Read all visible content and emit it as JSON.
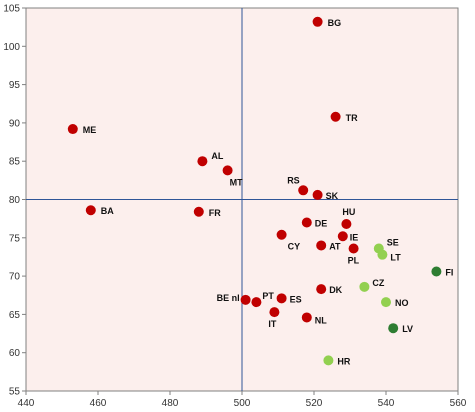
{
  "chart_data": {
    "type": "scatter",
    "title": "",
    "xlabel": "",
    "ylabel": "",
    "xlim": [
      440,
      560
    ],
    "ylim": [
      55,
      105
    ],
    "xticks": [
      440,
      460,
      480,
      500,
      520,
      540,
      560
    ],
    "yticks": [
      55,
      60,
      65,
      70,
      75,
      80,
      85,
      90,
      95,
      100,
      105
    ],
    "grid": false,
    "reference_lines": {
      "x": 500,
      "y": 80
    },
    "colors": {
      "plot_background": "#fcefed",
      "reference_line": "#2f5597",
      "red": "#c00000",
      "light_green": "#92d050",
      "dark_green": "#2e7d32"
    },
    "points": [
      {
        "label": "BG",
        "x": 521,
        "y": 103.2,
        "color": "red"
      },
      {
        "label": "TR",
        "x": 526,
        "y": 90.8,
        "color": "red"
      },
      {
        "label": "ME",
        "x": 453,
        "y": 89.2,
        "color": "red"
      },
      {
        "label": "AL",
        "x": 489,
        "y": 85.0,
        "color": "red"
      },
      {
        "label": "MT",
        "x": 496,
        "y": 83.8,
        "color": "red"
      },
      {
        "label": "RS",
        "x": 517,
        "y": 81.2,
        "color": "red"
      },
      {
        "label": "SK",
        "x": 521,
        "y": 80.6,
        "color": "red"
      },
      {
        "label": "BA",
        "x": 458,
        "y": 78.6,
        "color": "red"
      },
      {
        "label": "FR",
        "x": 488,
        "y": 78.4,
        "color": "red"
      },
      {
        "label": "HU",
        "x": 529,
        "y": 76.8,
        "color": "red"
      },
      {
        "label": "DE",
        "x": 518,
        "y": 77.0,
        "color": "red"
      },
      {
        "label": "IE",
        "x": 528,
        "y": 75.2,
        "color": "red"
      },
      {
        "label": "CY",
        "x": 511,
        "y": 75.4,
        "color": "red"
      },
      {
        "label": "AT",
        "x": 522,
        "y": 74.0,
        "color": "red"
      },
      {
        "label": "PL",
        "x": 531,
        "y": 73.6,
        "color": "red"
      },
      {
        "label": "SE",
        "x": 538,
        "y": 73.6,
        "color": "light_green"
      },
      {
        "label": "LT",
        "x": 539,
        "y": 72.8,
        "color": "light_green"
      },
      {
        "label": "FI",
        "x": 554,
        "y": 70.6,
        "color": "dark_green"
      },
      {
        "label": "CZ",
        "x": 534,
        "y": 68.6,
        "color": "light_green"
      },
      {
        "label": "DK",
        "x": 522,
        "y": 68.3,
        "color": "red"
      },
      {
        "label": "PT",
        "x": 504,
        "y": 66.6,
        "color": "red"
      },
      {
        "label": "BE nl",
        "x": 501,
        "y": 66.9,
        "color": "red"
      },
      {
        "label": "ES",
        "x": 511,
        "y": 67.1,
        "color": "red"
      },
      {
        "label": "NO",
        "x": 540,
        "y": 66.6,
        "color": "light_green"
      },
      {
        "label": "IT",
        "x": 509,
        "y": 65.3,
        "color": "red"
      },
      {
        "label": "NL",
        "x": 518,
        "y": 64.6,
        "color": "red"
      },
      {
        "label": "LV",
        "x": 542,
        "y": 63.2,
        "color": "dark_green"
      },
      {
        "label": "HR",
        "x": 524,
        "y": 59.0,
        "color": "light_green"
      }
    ]
  }
}
